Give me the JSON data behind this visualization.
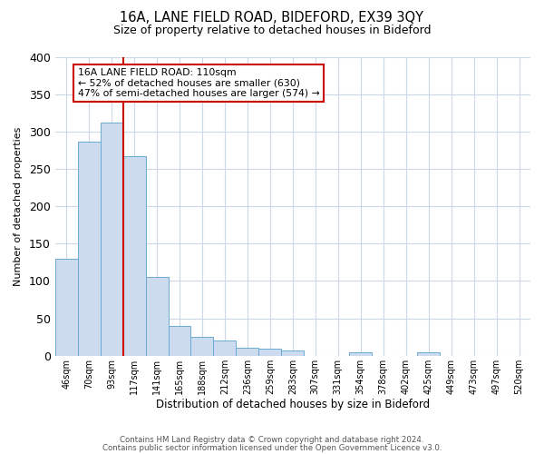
{
  "title1": "16A, LANE FIELD ROAD, BIDEFORD, EX39 3QY",
  "title2": "Size of property relative to detached houses in Bideford",
  "xlabel": "Distribution of detached houses by size in Bideford",
  "ylabel": "Number of detached properties",
  "bar_labels": [
    "46sqm",
    "70sqm",
    "93sqm",
    "117sqm",
    "141sqm",
    "165sqm",
    "188sqm",
    "212sqm",
    "236sqm",
    "259sqm",
    "283sqm",
    "307sqm",
    "331sqm",
    "354sqm",
    "378sqm",
    "402sqm",
    "425sqm",
    "449sqm",
    "473sqm",
    "497sqm",
    "520sqm"
  ],
  "bar_values": [
    130,
    287,
    312,
    267,
    106,
    40,
    25,
    21,
    11,
    10,
    7,
    0,
    0,
    5,
    0,
    0,
    5,
    0,
    0,
    0,
    0
  ],
  "bar_color": "#ccdcee",
  "bar_edge_color": "#6aaad4",
  "vline_color": "#cc0000",
  "ylim": [
    0,
    400
  ],
  "yticks": [
    0,
    50,
    100,
    150,
    200,
    250,
    300,
    350,
    400
  ],
  "annotation_title": "16A LANE FIELD ROAD: 110sqm",
  "annotation_line1": "← 52% of detached houses are smaller (630)",
  "annotation_line2": "47% of semi-detached houses are larger (574) →",
  "annotation_box_color": "#ffffff",
  "annotation_box_edge": "#cc0000",
  "footer1": "Contains HM Land Registry data © Crown copyright and database right 2024.",
  "footer2": "Contains public sector information licensed under the Open Government Licence v3.0.",
  "bg_color": "#ffffff",
  "grid_color": "#ccd8e8"
}
